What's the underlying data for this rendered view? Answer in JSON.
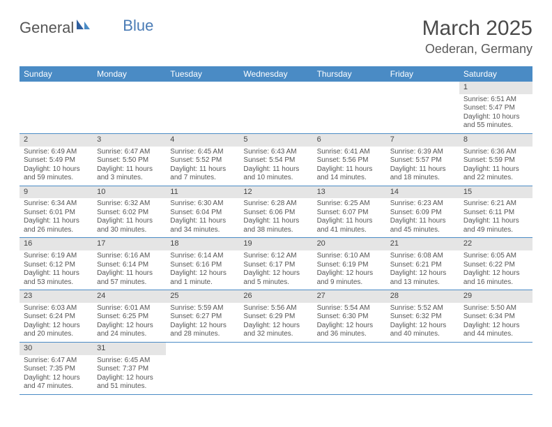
{
  "logo": {
    "part1": "General",
    "part2": "Blue"
  },
  "title": {
    "month_year": "March 2025",
    "location": "Oederan, Germany"
  },
  "colors": {
    "header_bg": "#4a8bc5",
    "header_text": "#ffffff",
    "daynum_bg": "#e5e5e5",
    "rule": "#4a8bc5",
    "body_text": "#555555",
    "logo_gray": "#555555",
    "logo_blue": "#4a7bb5"
  },
  "day_names": [
    "Sunday",
    "Monday",
    "Tuesday",
    "Wednesday",
    "Thursday",
    "Friday",
    "Saturday"
  ],
  "weeks": [
    [
      null,
      null,
      null,
      null,
      null,
      null,
      {
        "n": "1",
        "sr": "Sunrise: 6:51 AM",
        "ss": "Sunset: 5:47 PM",
        "d1": "Daylight: 10 hours",
        "d2": "and 55 minutes."
      }
    ],
    [
      {
        "n": "2",
        "sr": "Sunrise: 6:49 AM",
        "ss": "Sunset: 5:49 PM",
        "d1": "Daylight: 10 hours",
        "d2": "and 59 minutes."
      },
      {
        "n": "3",
        "sr": "Sunrise: 6:47 AM",
        "ss": "Sunset: 5:50 PM",
        "d1": "Daylight: 11 hours",
        "d2": "and 3 minutes."
      },
      {
        "n": "4",
        "sr": "Sunrise: 6:45 AM",
        "ss": "Sunset: 5:52 PM",
        "d1": "Daylight: 11 hours",
        "d2": "and 7 minutes."
      },
      {
        "n": "5",
        "sr": "Sunrise: 6:43 AM",
        "ss": "Sunset: 5:54 PM",
        "d1": "Daylight: 11 hours",
        "d2": "and 10 minutes."
      },
      {
        "n": "6",
        "sr": "Sunrise: 6:41 AM",
        "ss": "Sunset: 5:56 PM",
        "d1": "Daylight: 11 hours",
        "d2": "and 14 minutes."
      },
      {
        "n": "7",
        "sr": "Sunrise: 6:39 AM",
        "ss": "Sunset: 5:57 PM",
        "d1": "Daylight: 11 hours",
        "d2": "and 18 minutes."
      },
      {
        "n": "8",
        "sr": "Sunrise: 6:36 AM",
        "ss": "Sunset: 5:59 PM",
        "d1": "Daylight: 11 hours",
        "d2": "and 22 minutes."
      }
    ],
    [
      {
        "n": "9",
        "sr": "Sunrise: 6:34 AM",
        "ss": "Sunset: 6:01 PM",
        "d1": "Daylight: 11 hours",
        "d2": "and 26 minutes."
      },
      {
        "n": "10",
        "sr": "Sunrise: 6:32 AM",
        "ss": "Sunset: 6:02 PM",
        "d1": "Daylight: 11 hours",
        "d2": "and 30 minutes."
      },
      {
        "n": "11",
        "sr": "Sunrise: 6:30 AM",
        "ss": "Sunset: 6:04 PM",
        "d1": "Daylight: 11 hours",
        "d2": "and 34 minutes."
      },
      {
        "n": "12",
        "sr": "Sunrise: 6:28 AM",
        "ss": "Sunset: 6:06 PM",
        "d1": "Daylight: 11 hours",
        "d2": "and 38 minutes."
      },
      {
        "n": "13",
        "sr": "Sunrise: 6:25 AM",
        "ss": "Sunset: 6:07 PM",
        "d1": "Daylight: 11 hours",
        "d2": "and 41 minutes."
      },
      {
        "n": "14",
        "sr": "Sunrise: 6:23 AM",
        "ss": "Sunset: 6:09 PM",
        "d1": "Daylight: 11 hours",
        "d2": "and 45 minutes."
      },
      {
        "n": "15",
        "sr": "Sunrise: 6:21 AM",
        "ss": "Sunset: 6:11 PM",
        "d1": "Daylight: 11 hours",
        "d2": "and 49 minutes."
      }
    ],
    [
      {
        "n": "16",
        "sr": "Sunrise: 6:19 AM",
        "ss": "Sunset: 6:12 PM",
        "d1": "Daylight: 11 hours",
        "d2": "and 53 minutes."
      },
      {
        "n": "17",
        "sr": "Sunrise: 6:16 AM",
        "ss": "Sunset: 6:14 PM",
        "d1": "Daylight: 11 hours",
        "d2": "and 57 minutes."
      },
      {
        "n": "18",
        "sr": "Sunrise: 6:14 AM",
        "ss": "Sunset: 6:16 PM",
        "d1": "Daylight: 12 hours",
        "d2": "and 1 minute."
      },
      {
        "n": "19",
        "sr": "Sunrise: 6:12 AM",
        "ss": "Sunset: 6:17 PM",
        "d1": "Daylight: 12 hours",
        "d2": "and 5 minutes."
      },
      {
        "n": "20",
        "sr": "Sunrise: 6:10 AM",
        "ss": "Sunset: 6:19 PM",
        "d1": "Daylight: 12 hours",
        "d2": "and 9 minutes."
      },
      {
        "n": "21",
        "sr": "Sunrise: 6:08 AM",
        "ss": "Sunset: 6:21 PM",
        "d1": "Daylight: 12 hours",
        "d2": "and 13 minutes."
      },
      {
        "n": "22",
        "sr": "Sunrise: 6:05 AM",
        "ss": "Sunset: 6:22 PM",
        "d1": "Daylight: 12 hours",
        "d2": "and 16 minutes."
      }
    ],
    [
      {
        "n": "23",
        "sr": "Sunrise: 6:03 AM",
        "ss": "Sunset: 6:24 PM",
        "d1": "Daylight: 12 hours",
        "d2": "and 20 minutes."
      },
      {
        "n": "24",
        "sr": "Sunrise: 6:01 AM",
        "ss": "Sunset: 6:25 PM",
        "d1": "Daylight: 12 hours",
        "d2": "and 24 minutes."
      },
      {
        "n": "25",
        "sr": "Sunrise: 5:59 AM",
        "ss": "Sunset: 6:27 PM",
        "d1": "Daylight: 12 hours",
        "d2": "and 28 minutes."
      },
      {
        "n": "26",
        "sr": "Sunrise: 5:56 AM",
        "ss": "Sunset: 6:29 PM",
        "d1": "Daylight: 12 hours",
        "d2": "and 32 minutes."
      },
      {
        "n": "27",
        "sr": "Sunrise: 5:54 AM",
        "ss": "Sunset: 6:30 PM",
        "d1": "Daylight: 12 hours",
        "d2": "and 36 minutes."
      },
      {
        "n": "28",
        "sr": "Sunrise: 5:52 AM",
        "ss": "Sunset: 6:32 PM",
        "d1": "Daylight: 12 hours",
        "d2": "and 40 minutes."
      },
      {
        "n": "29",
        "sr": "Sunrise: 5:50 AM",
        "ss": "Sunset: 6:34 PM",
        "d1": "Daylight: 12 hours",
        "d2": "and 44 minutes."
      }
    ],
    [
      {
        "n": "30",
        "sr": "Sunrise: 6:47 AM",
        "ss": "Sunset: 7:35 PM",
        "d1": "Daylight: 12 hours",
        "d2": "and 47 minutes."
      },
      {
        "n": "31",
        "sr": "Sunrise: 6:45 AM",
        "ss": "Sunset: 7:37 PM",
        "d1": "Daylight: 12 hours",
        "d2": "and 51 minutes."
      },
      null,
      null,
      null,
      null,
      null
    ]
  ]
}
